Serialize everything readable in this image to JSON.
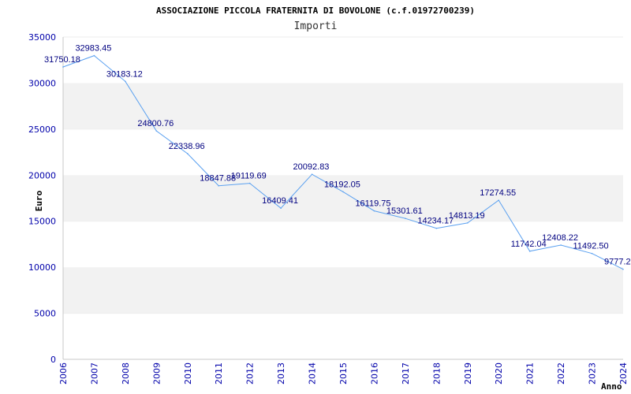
{
  "colors": {
    "line": "#5aa0f0",
    "band": "#f2f2f2",
    "axis": "#0000aa",
    "label": "#000080"
  },
  "chart_data": {
    "type": "line",
    "title": "ASSOCIAZIONE PICCOLA FRATERNITA DI BOVOLONE (c.f.01972700239)",
    "subtitle": "Importi",
    "xlabel": "Anno",
    "ylabel": "Euro",
    "ylim": [
      0,
      35000
    ],
    "xlim": [
      2006,
      2024
    ],
    "yticks": [
      "0",
      "5000",
      "10000",
      "15000",
      "20000",
      "25000",
      "30000",
      "35000"
    ],
    "xticks": [
      "2006",
      "2007",
      "2008",
      "2009",
      "2010",
      "2011",
      "2012",
      "2013",
      "2014",
      "2015",
      "2016",
      "2017",
      "2018",
      "2019",
      "2020",
      "2021",
      "2022",
      "2023",
      "2024"
    ],
    "grid": "alternating horizontal bands",
    "points": [
      {
        "x": 2006,
        "y": 31750.18,
        "label": "31750.18"
      },
      {
        "x": 2007,
        "y": 32983.45,
        "label": "32983.45"
      },
      {
        "x": 2008,
        "y": 30183.12,
        "label": "30183.12"
      },
      {
        "x": 2009,
        "y": 24800.76,
        "label": "24800.76"
      },
      {
        "x": 2010,
        "y": 22338.96,
        "label": "22338.96"
      },
      {
        "x": 2011,
        "y": 18847.88,
        "label": "18847.88"
      },
      {
        "x": 2012,
        "y": 19119.69,
        "label": "19119.69"
      },
      {
        "x": 2013,
        "y": 16409.41,
        "label": "16409.41"
      },
      {
        "x": 2014,
        "y": 20092.83,
        "label": "20092.83"
      },
      {
        "x": 2015,
        "y": 18192.05,
        "label": "18192.05"
      },
      {
        "x": 2016,
        "y": 16119.75,
        "label": "16119.75"
      },
      {
        "x": 2017,
        "y": 15301.61,
        "label": "15301.61"
      },
      {
        "x": 2018,
        "y": 14234.17,
        "label": "14234.17"
      },
      {
        "x": 2019,
        "y": 14813.19,
        "label": "14813.19"
      },
      {
        "x": 2020,
        "y": 17274.55,
        "label": "17274.55"
      },
      {
        "x": 2021,
        "y": 11742.04,
        "label": "11742.04"
      },
      {
        "x": 2022,
        "y": 12408.22,
        "label": "12408.22"
      },
      {
        "x": 2023,
        "y": 11492.5,
        "label": "11492.50"
      },
      {
        "x": 2024,
        "y": 9777.2,
        "label": "9777.2"
      }
    ]
  }
}
